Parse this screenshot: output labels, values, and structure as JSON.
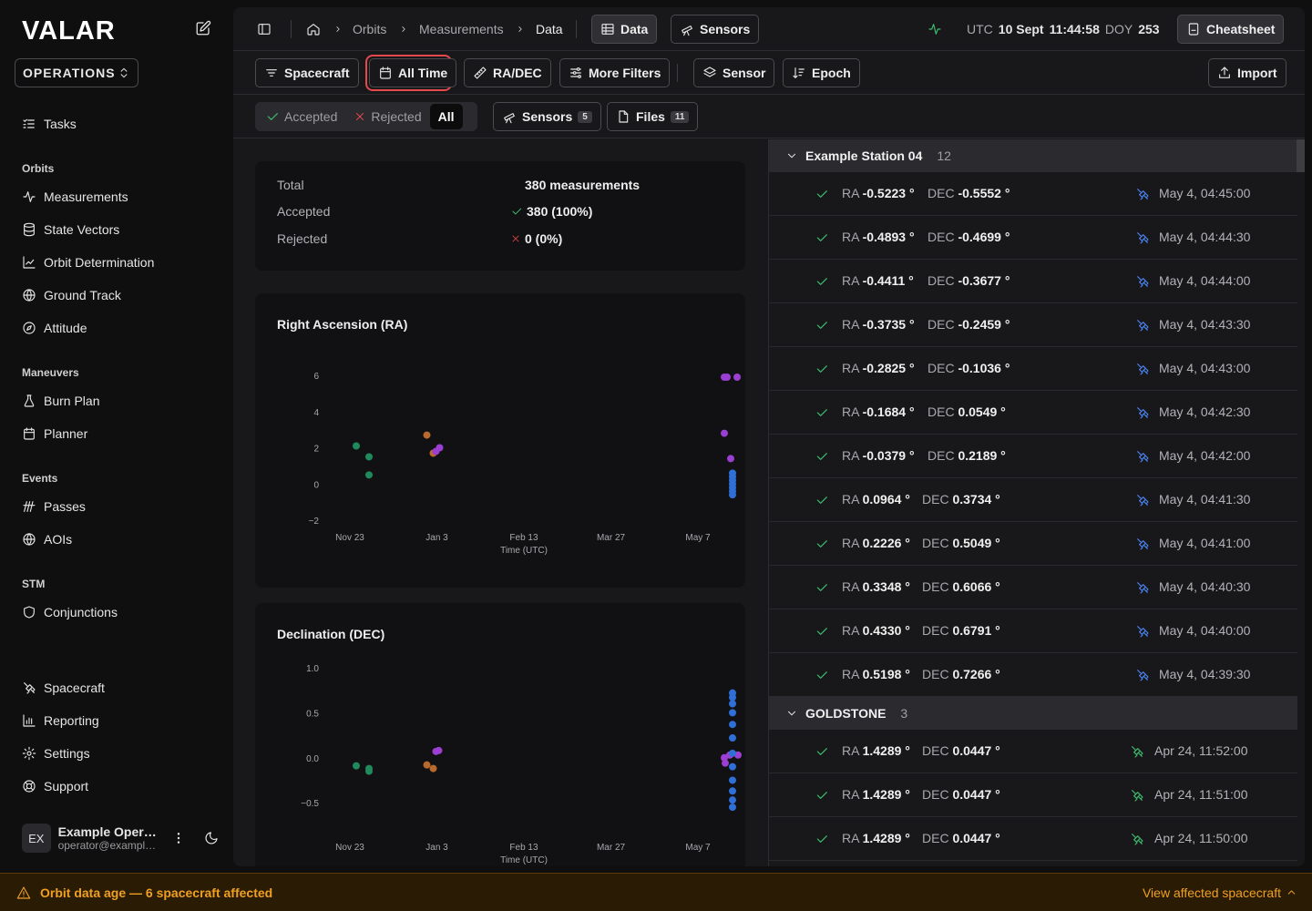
{
  "app": {
    "logo": "VALAR"
  },
  "sidebar": {
    "org": "OPERATIONS",
    "top_items": [
      {
        "label": "Tasks",
        "icon": "list-checks-icon"
      }
    ],
    "sections": [
      {
        "title": "Orbits",
        "items": [
          {
            "label": "Measurements",
            "icon": "activity-icon"
          },
          {
            "label": "State Vectors",
            "icon": "database-icon"
          },
          {
            "label": "Orbit Determination",
            "icon": "line-chart-icon"
          },
          {
            "label": "Ground Track",
            "icon": "globe-icon"
          },
          {
            "label": "Attitude",
            "icon": "compass-icon"
          }
        ]
      },
      {
        "title": "Maneuvers",
        "items": [
          {
            "label": "Burn Plan",
            "icon": "flask-icon"
          },
          {
            "label": "Planner",
            "icon": "calendar-icon"
          }
        ]
      },
      {
        "title": "Events",
        "items": [
          {
            "label": "Passes",
            "icon": "signal-icon"
          },
          {
            "label": "AOIs",
            "icon": "globe-icon"
          }
        ]
      },
      {
        "title": "STM",
        "items": [
          {
            "label": "Conjunctions",
            "icon": "shield-icon"
          }
        ]
      }
    ],
    "bottom_items": [
      {
        "label": "Spacecraft",
        "icon": "satellite-icon"
      },
      {
        "label": "Reporting",
        "icon": "bar-chart-icon"
      },
      {
        "label": "Settings",
        "icon": "gear-icon"
      },
      {
        "label": "Support",
        "icon": "lifebuoy-icon"
      }
    ],
    "user": {
      "initials": "EX",
      "name": "Example Operator",
      "email": "operator@example.com"
    }
  },
  "topbar": {
    "breadcrumbs": [
      "Orbits",
      "Measurements",
      "Data"
    ],
    "view_tabs": [
      {
        "label": "Data",
        "active": true
      },
      {
        "label": "Sensors",
        "active": false
      }
    ],
    "clock": {
      "utc_label": "UTC",
      "date": "10 Sept",
      "time": "11:44:58",
      "doy_label": "DOY",
      "doy": "253"
    },
    "cheatsheet_label": "Cheatsheet"
  },
  "filters": {
    "buttons": [
      "Spacecraft",
      "All Time",
      "RA/DEC",
      "More Filters",
      "Sensor",
      "Epoch"
    ],
    "active_filter": "All Time",
    "import_label": "Import"
  },
  "tabs": {
    "status_options": [
      "Accepted",
      "Rejected",
      "All"
    ],
    "active_status": "All",
    "sensors": {
      "label": "Sensors",
      "count": "5"
    },
    "files": {
      "label": "Files",
      "count": "11"
    }
  },
  "summary": {
    "rows": [
      {
        "label": "Total",
        "value": "380 measurements"
      },
      {
        "label": "Accepted",
        "value": "380 (100%)"
      },
      {
        "label": "Rejected",
        "value": "0 (0%)"
      }
    ]
  },
  "colors": {
    "green": "#1f8a5c",
    "orange": "#b86a2e",
    "purple": "#9a3fd1",
    "blue": "#2f6fd6",
    "accept": "#3fbf6f",
    "reject": "#e5484d",
    "warning": "#f0a020"
  },
  "chart_data": [
    {
      "type": "scatter",
      "title": "Right Ascension (RA)",
      "xlabel": "Time (UTC)",
      "ylabel": "",
      "x_ticks": [
        "Nov 23",
        "Jan 3",
        "Feb 13",
        "Mar 27",
        "May 7"
      ],
      "y_ticks": [
        "6",
        "4",
        "2",
        "0",
        "−2"
      ],
      "ylim": [
        -2,
        6
      ],
      "series": [
        {
          "color": "#1f8a5c",
          "points": [
            [
              "Nov 23",
              2.1
            ],
            [
              "Nov 23",
              1.5
            ],
            [
              "Nov 23",
              0.5
            ]
          ]
        },
        {
          "color": "#b86a2e",
          "points": [
            [
              "Jan 3",
              2.7
            ],
            [
              "Jan 3",
              1.7
            ]
          ]
        },
        {
          "color": "#9a3fd1",
          "points": [
            [
              "Jan 3",
              2.0
            ],
            [
              "Jan 3",
              1.8
            ],
            [
              "May 7",
              5.9
            ],
            [
              "May 7",
              5.9
            ],
            [
              "May 7",
              5.9
            ],
            [
              "May 7",
              2.8
            ],
            [
              "May 7",
              1.4
            ]
          ]
        },
        {
          "color": "#2f6fd6",
          "points": [
            [
              "May 7",
              0.6
            ],
            [
              "May 7",
              0.4
            ],
            [
              "May 7",
              0.2
            ],
            [
              "May 7",
              0.0
            ],
            [
              "May 7",
              -0.2
            ],
            [
              "May 7",
              -0.4
            ],
            [
              "May 7",
              -0.6
            ]
          ]
        }
      ]
    },
    {
      "type": "scatter",
      "title": "Declination (DEC)",
      "xlabel": "Time (UTC)",
      "ylabel": "",
      "x_ticks": [
        "Nov 23",
        "Jan 3",
        "Feb 13",
        "Mar 27",
        "May 7"
      ],
      "y_ticks": [
        "1.0",
        "0.5",
        "0.0",
        "−0.5"
      ],
      "ylim": [
        -0.6,
        1.0
      ],
      "series": [
        {
          "color": "#1f8a5c",
          "points": [
            [
              "Nov 23",
              -0.09
            ],
            [
              "Nov 23",
              -0.12
            ],
            [
              "Nov 23",
              -0.15
            ]
          ]
        },
        {
          "color": "#b86a2e",
          "points": [
            [
              "Jan 3",
              -0.08
            ],
            [
              "Jan 3",
              -0.12
            ]
          ]
        },
        {
          "color": "#9a3fd1",
          "points": [
            [
              "Jan 3",
              0.07
            ],
            [
              "Jan 3",
              0.08
            ],
            [
              "May 7",
              0.0
            ],
            [
              "May 7",
              -0.06
            ],
            [
              "May 7",
              0.03
            ],
            [
              "May 7",
              0.03
            ]
          ]
        },
        {
          "color": "#2f6fd6",
          "points": [
            [
              "May 7",
              0.72
            ],
            [
              "May 7",
              0.67
            ],
            [
              "May 7",
              0.6
            ],
            [
              "May 7",
              0.5
            ],
            [
              "May 7",
              0.37
            ],
            [
              "May 7",
              0.22
            ],
            [
              "May 7",
              0.05
            ],
            [
              "May 7",
              -0.1
            ],
            [
              "May 7",
              -0.25
            ],
            [
              "May 7",
              -0.37
            ],
            [
              "May 7",
              -0.47
            ],
            [
              "May 7",
              -0.55
            ]
          ]
        }
      ]
    }
  ],
  "measurements": {
    "ra_label": "RA",
    "dec_label": "DEC",
    "groups": [
      {
        "name": "Example Station 04",
        "count": "12",
        "sensor_color": "#4b84f0",
        "rows": [
          {
            "ra": "-0.5223 °",
            "dec": "-0.5552 °",
            "time": "May 4, 04:45:00"
          },
          {
            "ra": "-0.4893 °",
            "dec": "-0.4699 °",
            "time": "May 4, 04:44:30"
          },
          {
            "ra": "-0.4411 °",
            "dec": "-0.3677 °",
            "time": "May 4, 04:44:00"
          },
          {
            "ra": "-0.3735 °",
            "dec": "-0.2459 °",
            "time": "May 4, 04:43:30"
          },
          {
            "ra": "-0.2825 °",
            "dec": "-0.1036 °",
            "time": "May 4, 04:43:00"
          },
          {
            "ra": "-0.1684 °",
            "dec": "0.0549 °",
            "time": "May 4, 04:42:30"
          },
          {
            "ra": "-0.0379 °",
            "dec": "0.2189 °",
            "time": "May 4, 04:42:00"
          },
          {
            "ra": "0.0964 °",
            "dec": "0.3734 °",
            "time": "May 4, 04:41:30"
          },
          {
            "ra": "0.2226 °",
            "dec": "0.5049 °",
            "time": "May 4, 04:41:00"
          },
          {
            "ra": "0.3348 °",
            "dec": "0.6066 °",
            "time": "May 4, 04:40:30"
          },
          {
            "ra": "0.4330 °",
            "dec": "0.6791 °",
            "time": "May 4, 04:40:00"
          },
          {
            "ra": "0.5198 °",
            "dec": "0.7266 °",
            "time": "May 4, 04:39:30"
          }
        ]
      },
      {
        "name": "GOLDSTONE",
        "count": "3",
        "sensor_color": "#3fbf6f",
        "rows": [
          {
            "ra": "1.4289 °",
            "dec": "0.0447 °",
            "time": "Apr 24, 11:52:00"
          },
          {
            "ra": "1.4289 °",
            "dec": "0.0447 °",
            "time": "Apr 24, 11:51:00"
          },
          {
            "ra": "1.4289 °",
            "dec": "0.0447 °",
            "time": "Apr 24, 11:50:00"
          }
        ]
      }
    ]
  },
  "footer": {
    "warning": "Orbit data age — 6 spacecraft affected",
    "link": "View affected spacecraft"
  }
}
